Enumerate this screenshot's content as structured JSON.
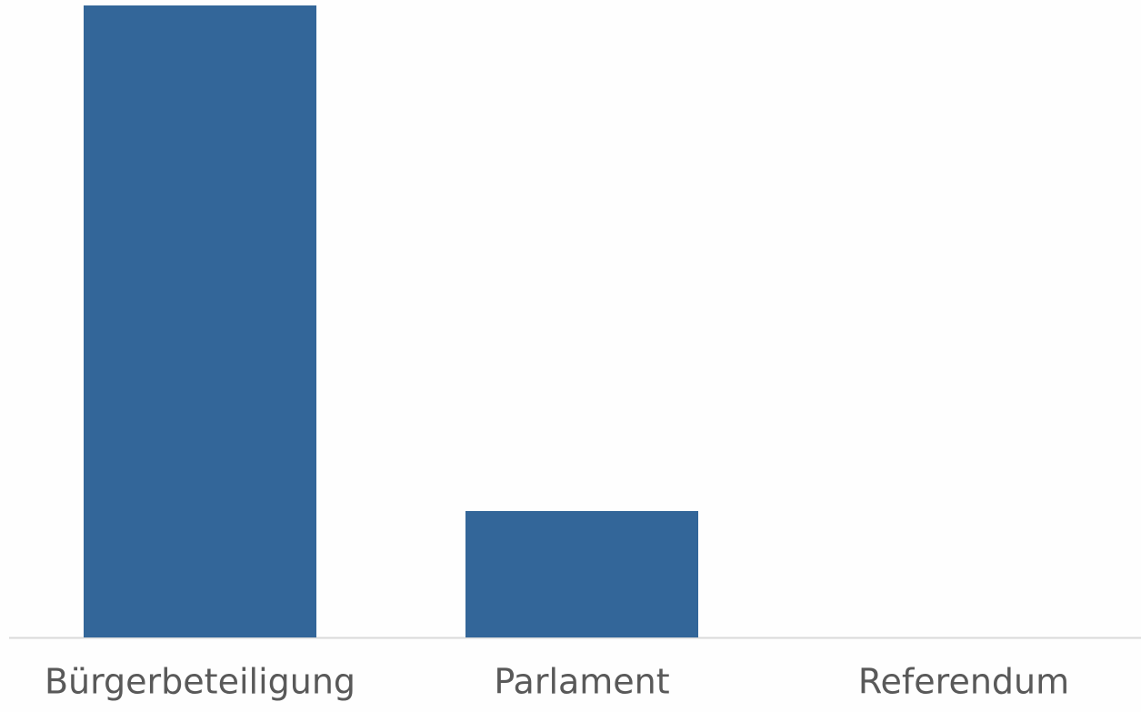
{
  "chart_data": {
    "type": "bar",
    "categories": [
      "Bürgerbeteiligung",
      "Parlament",
      "Referendum"
    ],
    "values": [
      5,
      1,
      0
    ],
    "color": "#336699",
    "ylim": [
      0,
      5
    ]
  }
}
